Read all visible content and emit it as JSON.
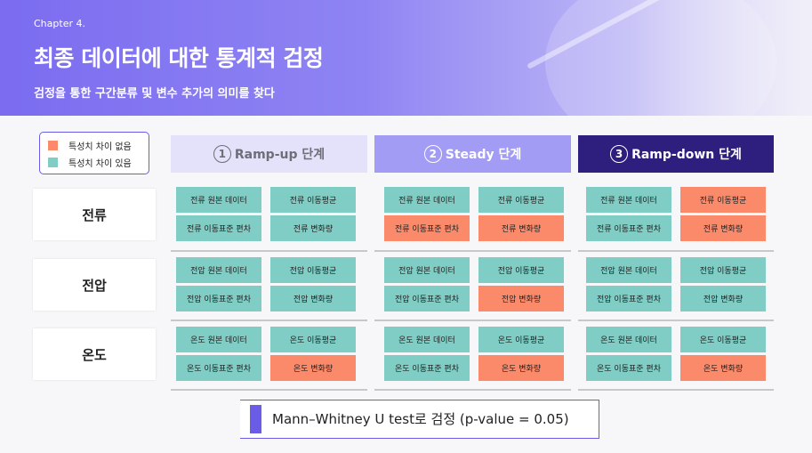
{
  "header": {
    "chapter": "Chapter 4.",
    "title": "최종 데이터에 대한 통계적 검정",
    "subtitle": "검정을 통한 구간분류 및 변수 추가의 의미를 찾다"
  },
  "legend": [
    {
      "label": "특성치 차이 없음",
      "color": "#fb8a6a"
    },
    {
      "label": "특성치 차이 있음",
      "color": "#7fcdc4"
    }
  ],
  "colors": {
    "no_diff": "#fb8a6a",
    "diff": "#7fcdc4",
    "accent": "#6b5ce7"
  },
  "stages": [
    {
      "num": "1",
      "label": "Ramp-up 단계",
      "bg": "#e4e1fb",
      "fg": "#6e6e78"
    },
    {
      "num": "2",
      "label": "Steady 단계",
      "bg": "#a39cf5",
      "fg": "#ffffff"
    },
    {
      "num": "3",
      "label": "Ramp-down 단계",
      "bg": "#2e1f7e",
      "fg": "#ffffff"
    }
  ],
  "rows": [
    {
      "label": "전류",
      "stages": [
        [
          {
            "text": "전류 원본 데이터",
            "status": "diff"
          },
          {
            "text": "전류 이동평균",
            "status": "diff"
          },
          {
            "text": "전류 이동표준 편차",
            "status": "diff"
          },
          {
            "text": "전류 변화량",
            "status": "diff"
          }
        ],
        [
          {
            "text": "전류 원본 데이터",
            "status": "diff"
          },
          {
            "text": "전류 이동평균",
            "status": "diff"
          },
          {
            "text": "전류 이동표준 편차",
            "status": "no_diff"
          },
          {
            "text": "전류 변화량",
            "status": "no_diff"
          }
        ],
        [
          {
            "text": "전류 원본 데이터",
            "status": "diff"
          },
          {
            "text": "전류 이동평균",
            "status": "no_diff"
          },
          {
            "text": "전류 이동표준 편차",
            "status": "diff"
          },
          {
            "text": "전류 변화량",
            "status": "no_diff"
          }
        ]
      ]
    },
    {
      "label": "전압",
      "stages": [
        [
          {
            "text": "전압 원본 데이터",
            "status": "diff"
          },
          {
            "text": "전압 이동평균",
            "status": "diff"
          },
          {
            "text": "전압 이동표준 편차",
            "status": "diff"
          },
          {
            "text": "전압 변화량",
            "status": "diff"
          }
        ],
        [
          {
            "text": "전압 원본 데이터",
            "status": "diff"
          },
          {
            "text": "전압 이동평균",
            "status": "diff"
          },
          {
            "text": "전압 이동표준 편차",
            "status": "diff"
          },
          {
            "text": "전압 변화량",
            "status": "no_diff"
          }
        ],
        [
          {
            "text": "전압 원본 데이터",
            "status": "diff"
          },
          {
            "text": "전압 이동평균",
            "status": "diff"
          },
          {
            "text": "전압 이동표준 편차",
            "status": "diff"
          },
          {
            "text": "전압 변화량",
            "status": "diff"
          }
        ]
      ]
    },
    {
      "label": "온도",
      "stages": [
        [
          {
            "text": "온도 원본 데이터",
            "status": "diff"
          },
          {
            "text": "온도 이동평균",
            "status": "diff"
          },
          {
            "text": "온도 이동표준 편차",
            "status": "diff"
          },
          {
            "text": "온도 변화량",
            "status": "no_diff"
          }
        ],
        [
          {
            "text": "온도 원본 데이터",
            "status": "diff"
          },
          {
            "text": "온도 이동평균",
            "status": "diff"
          },
          {
            "text": "온도 이동표준 편차",
            "status": "diff"
          },
          {
            "text": "온도 변화량",
            "status": "no_diff"
          }
        ],
        [
          {
            "text": "온도 원본 데이터",
            "status": "diff"
          },
          {
            "text": "온도 이동평균",
            "status": "diff"
          },
          {
            "text": "온도 이동표준 편차",
            "status": "diff"
          },
          {
            "text": "온도 변화량",
            "status": "no_diff"
          }
        ]
      ]
    }
  ],
  "footer": {
    "text": "Mann–Whitney U test로 검정 (p-value = 0.05)"
  }
}
